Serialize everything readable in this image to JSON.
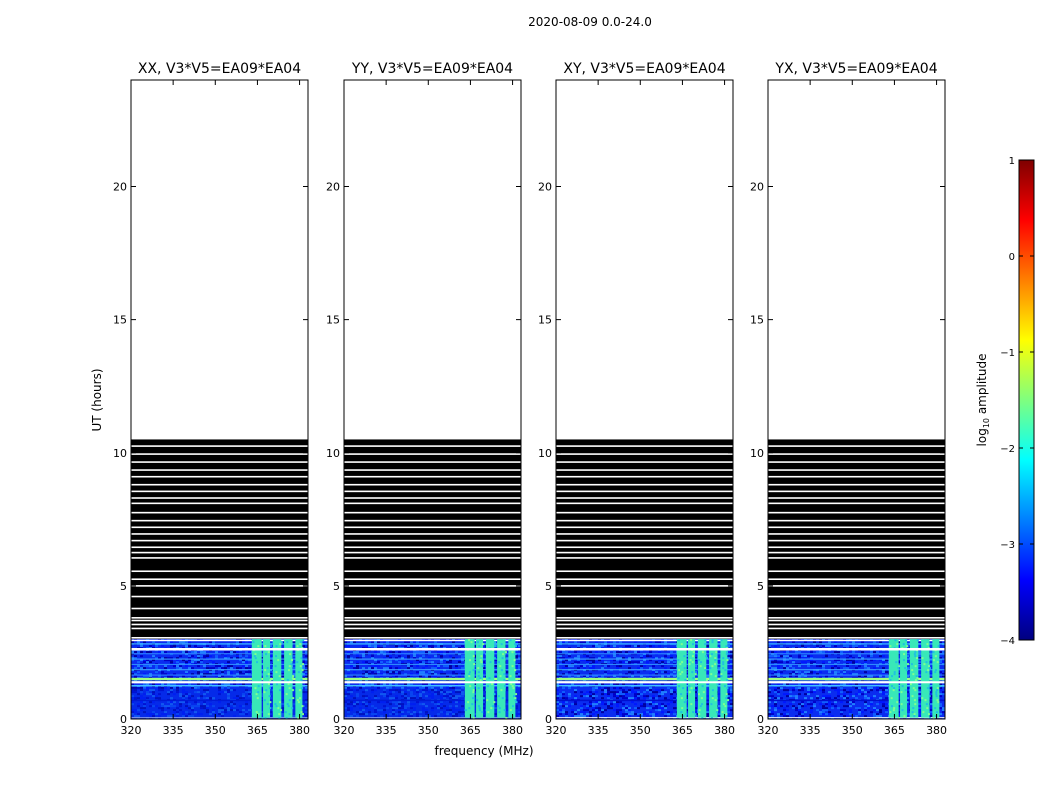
{
  "figure": {
    "title": "2020-08-09 0.0-24.0",
    "ylabel": "UT (hours)",
    "xlabel": "frequency (MHz)"
  },
  "colorbar": {
    "label": "log",
    "label_sub": "10",
    "label_rest": " amplitude",
    "ticks": [
      "1",
      "0",
      "−1",
      "−2",
      "−3",
      "−4"
    ],
    "range": [
      -4,
      1
    ],
    "colors": [
      "#00007f",
      "#0000ff",
      "#007fff",
      "#00ffff",
      "#7fff7f",
      "#ffff00",
      "#ff7f00",
      "#ff0000",
      "#7f0000"
    ]
  },
  "chart_data": [
    {
      "type": "heatmap",
      "title": "XX, V3*V5=EA09*EA04",
      "x_ticks": [
        "320",
        "335",
        "350",
        "365",
        "380"
      ],
      "y_ticks": [
        "0",
        "5",
        "10",
        "15",
        "20"
      ],
      "xlim": [
        320,
        383
      ],
      "ylim": [
        0,
        24
      ],
      "data_coverage_hours": [
        0,
        10.5
      ]
    },
    {
      "type": "heatmap",
      "title": "YY, V3*V5=EA09*EA04",
      "x_ticks": [
        "320",
        "335",
        "350",
        "365",
        "380"
      ],
      "y_ticks": [
        "0",
        "5",
        "10",
        "15",
        "20"
      ],
      "xlim": [
        320,
        383
      ],
      "ylim": [
        0,
        24
      ],
      "data_coverage_hours": [
        0,
        10.5
      ]
    },
    {
      "type": "heatmap",
      "title": "XY, V3*V5=EA09*EA04",
      "x_ticks": [
        "320",
        "335",
        "350",
        "365",
        "380"
      ],
      "y_ticks": [
        "0",
        "5",
        "10",
        "15",
        "20"
      ],
      "xlim": [
        320,
        383
      ],
      "ylim": [
        0,
        24
      ],
      "data_coverage_hours": [
        0,
        10.5
      ]
    },
    {
      "type": "heatmap",
      "title": "YX, V3*V5=EA09*EA04",
      "x_ticks": [
        "320",
        "335",
        "350",
        "365",
        "380"
      ],
      "y_ticks": [
        "0",
        "5",
        "10",
        "15",
        "20"
      ],
      "xlim": [
        320,
        383
      ],
      "ylim": [
        0,
        24
      ],
      "data_coverage_hours": [
        0,
        10.5
      ]
    }
  ]
}
